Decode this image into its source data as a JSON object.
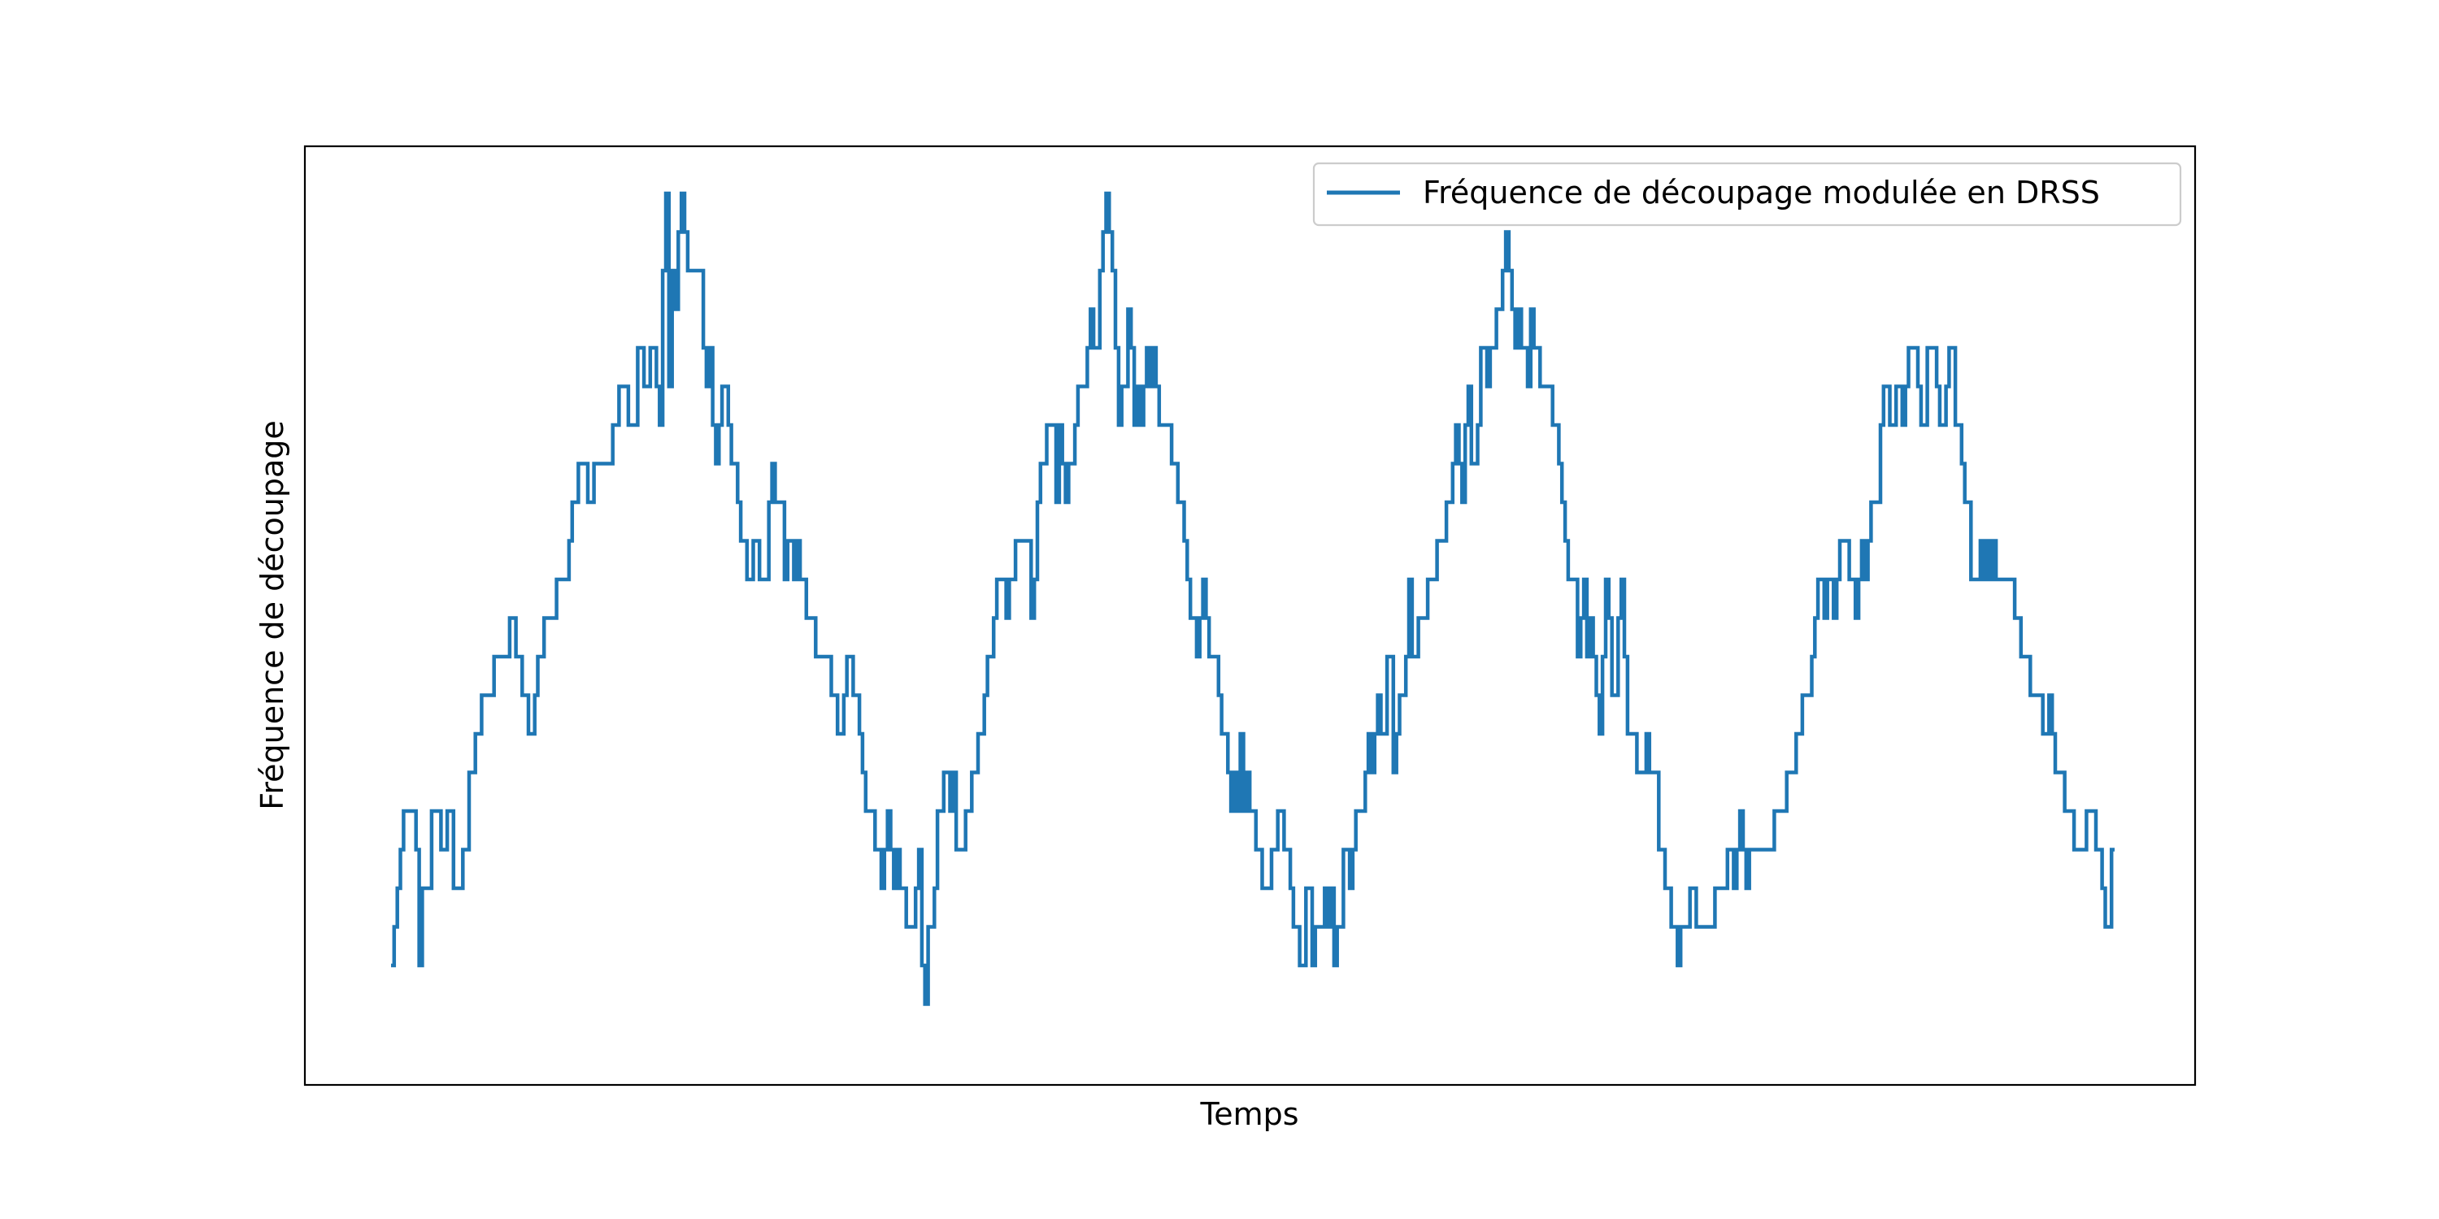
{
  "chart_data": {
    "type": "line",
    "step": "post",
    "xlabel": "Temps",
    "ylabel": "Fréquence de découpage",
    "x_ticks_visible": false,
    "y_ticks_visible": false,
    "grid": false,
    "legend": "upper-right",
    "colors": {
      "line": "#1f77b4",
      "axes": "#000000",
      "legend_border": "#cccccc"
    },
    "series": [
      {
        "name": "Fréquence de découpage modulée en DRSS",
        "levels": [
          2,
          3,
          4,
          5,
          6,
          6,
          6,
          6,
          5,
          2,
          4,
          4,
          4,
          6,
          6,
          6,
          5,
          5,
          6,
          6,
          4,
          4,
          4,
          5,
          5,
          7,
          7,
          8,
          8,
          9,
          9,
          9,
          9,
          10,
          10,
          10,
          10,
          10,
          11,
          11,
          10,
          10,
          9,
          9,
          8,
          8,
          9,
          10,
          10,
          11,
          11,
          11,
          11,
          12,
          12,
          12,
          12,
          13,
          14,
          14,
          15,
          15,
          15,
          14,
          14,
          15,
          15,
          15,
          15,
          15,
          15,
          16,
          16,
          17,
          17,
          17,
          16,
          16,
          16,
          18,
          18,
          17,
          17,
          18,
          18,
          17,
          16,
          20,
          22,
          17,
          20,
          19,
          21,
          22,
          21,
          20,
          20,
          20,
          20,
          20,
          18,
          17,
          18,
          16,
          15,
          16,
          17,
          17,
          16,
          15,
          15,
          14,
          13,
          13,
          12,
          12,
          13,
          13,
          12,
          12,
          12,
          14,
          15,
          14,
          14,
          14,
          12,
          13,
          13,
          12,
          13,
          12,
          12,
          11,
          11,
          11,
          10,
          10,
          10,
          10,
          10,
          9,
          9,
          8,
          8,
          9,
          10,
          10,
          9,
          9,
          8,
          7,
          6,
          6,
          6,
          5,
          5,
          4,
          5,
          6,
          5,
          4,
          5,
          4,
          4,
          3,
          3,
          3,
          4,
          5,
          2,
          1,
          3,
          3,
          4,
          6,
          6,
          7,
          7,
          6,
          7,
          5,
          5,
          5,
          6,
          6,
          7,
          7,
          8,
          8,
          9,
          10,
          10,
          11,
          12,
          12,
          12,
          11,
          12,
          12,
          13,
          13,
          13,
          13,
          13,
          11,
          12,
          14,
          15,
          15,
          16,
          16,
          16,
          14,
          16,
          15,
          14,
          15,
          15,
          16,
          17,
          17,
          17,
          18,
          19,
          18,
          18,
          20,
          21,
          22,
          21,
          20,
          18,
          16,
          17,
          17,
          19,
          18,
          16,
          17,
          16,
          17,
          18,
          17,
          18,
          17,
          16,
          16,
          16,
          16,
          15,
          15,
          14,
          14,
          13,
          12,
          11,
          11,
          10,
          11,
          12,
          11,
          10,
          10,
          10,
          9,
          8,
          8,
          7,
          6,
          7,
          6,
          8,
          6,
          7,
          6,
          6,
          5,
          5,
          4,
          4,
          4,
          5,
          5,
          6,
          6,
          5,
          5,
          4,
          3,
          3,
          2,
          2,
          4,
          4,
          2,
          3,
          3,
          3,
          4,
          3,
          4,
          2,
          3,
          3,
          5,
          5,
          4,
          5,
          6,
          6,
          6,
          7,
          8,
          7,
          8,
          9,
          8,
          8,
          10,
          10,
          7,
          8,
          9,
          9,
          10,
          12,
          10,
          10,
          11,
          11,
          11,
          12,
          12,
          12,
          13,
          13,
          13,
          14,
          14,
          15,
          16,
          15,
          14,
          16,
          17,
          15,
          15,
          16,
          18,
          18,
          17,
          18,
          18,
          19,
          19,
          20,
          21,
          20,
          19,
          18,
          19,
          18,
          18,
          17,
          19,
          18,
          18,
          17,
          17,
          17,
          17,
          16,
          16,
          15,
          14,
          13,
          12,
          12,
          12,
          10,
          11,
          12,
          10,
          11,
          10,
          9,
          8,
          10,
          12,
          11,
          9,
          9,
          11,
          12,
          10,
          8,
          8,
          8,
          7,
          7,
          7,
          8,
          7,
          7,
          7,
          5,
          5,
          4,
          4,
          3,
          3,
          2,
          3,
          3,
          3,
          4,
          4,
          3,
          3,
          3,
          3,
          3,
          3,
          4,
          4,
          4,
          4,
          5,
          5,
          4,
          5,
          6,
          5,
          4,
          5,
          5,
          5,
          5,
          5,
          5,
          5,
          5,
          6,
          6,
          6,
          6,
          7,
          7,
          7,
          8,
          8,
          9,
          9,
          9,
          10,
          11,
          12,
          12,
          11,
          12,
          12,
          11,
          12,
          13,
          13,
          13,
          12,
          12,
          11,
          12,
          13,
          12,
          13,
          14,
          14,
          14,
          16,
          17,
          17,
          16,
          16,
          17,
          17,
          16,
          17,
          18,
          18,
          18,
          17,
          16,
          16,
          18,
          18,
          18,
          17,
          16,
          16,
          17,
          18,
          18,
          16,
          16,
          15,
          14,
          14,
          12,
          12,
          12,
          13,
          12,
          13,
          12,
          13,
          12,
          12,
          12,
          12,
          12,
          12,
          11,
          11,
          10,
          10,
          10,
          9,
          9,
          9,
          9,
          8,
          8,
          9,
          8,
          7,
          7,
          7,
          6,
          6,
          6,
          5,
          5,
          5,
          5,
          6,
          6,
          6,
          5,
          5,
          4,
          3,
          3,
          5
        ]
      }
    ]
  }
}
